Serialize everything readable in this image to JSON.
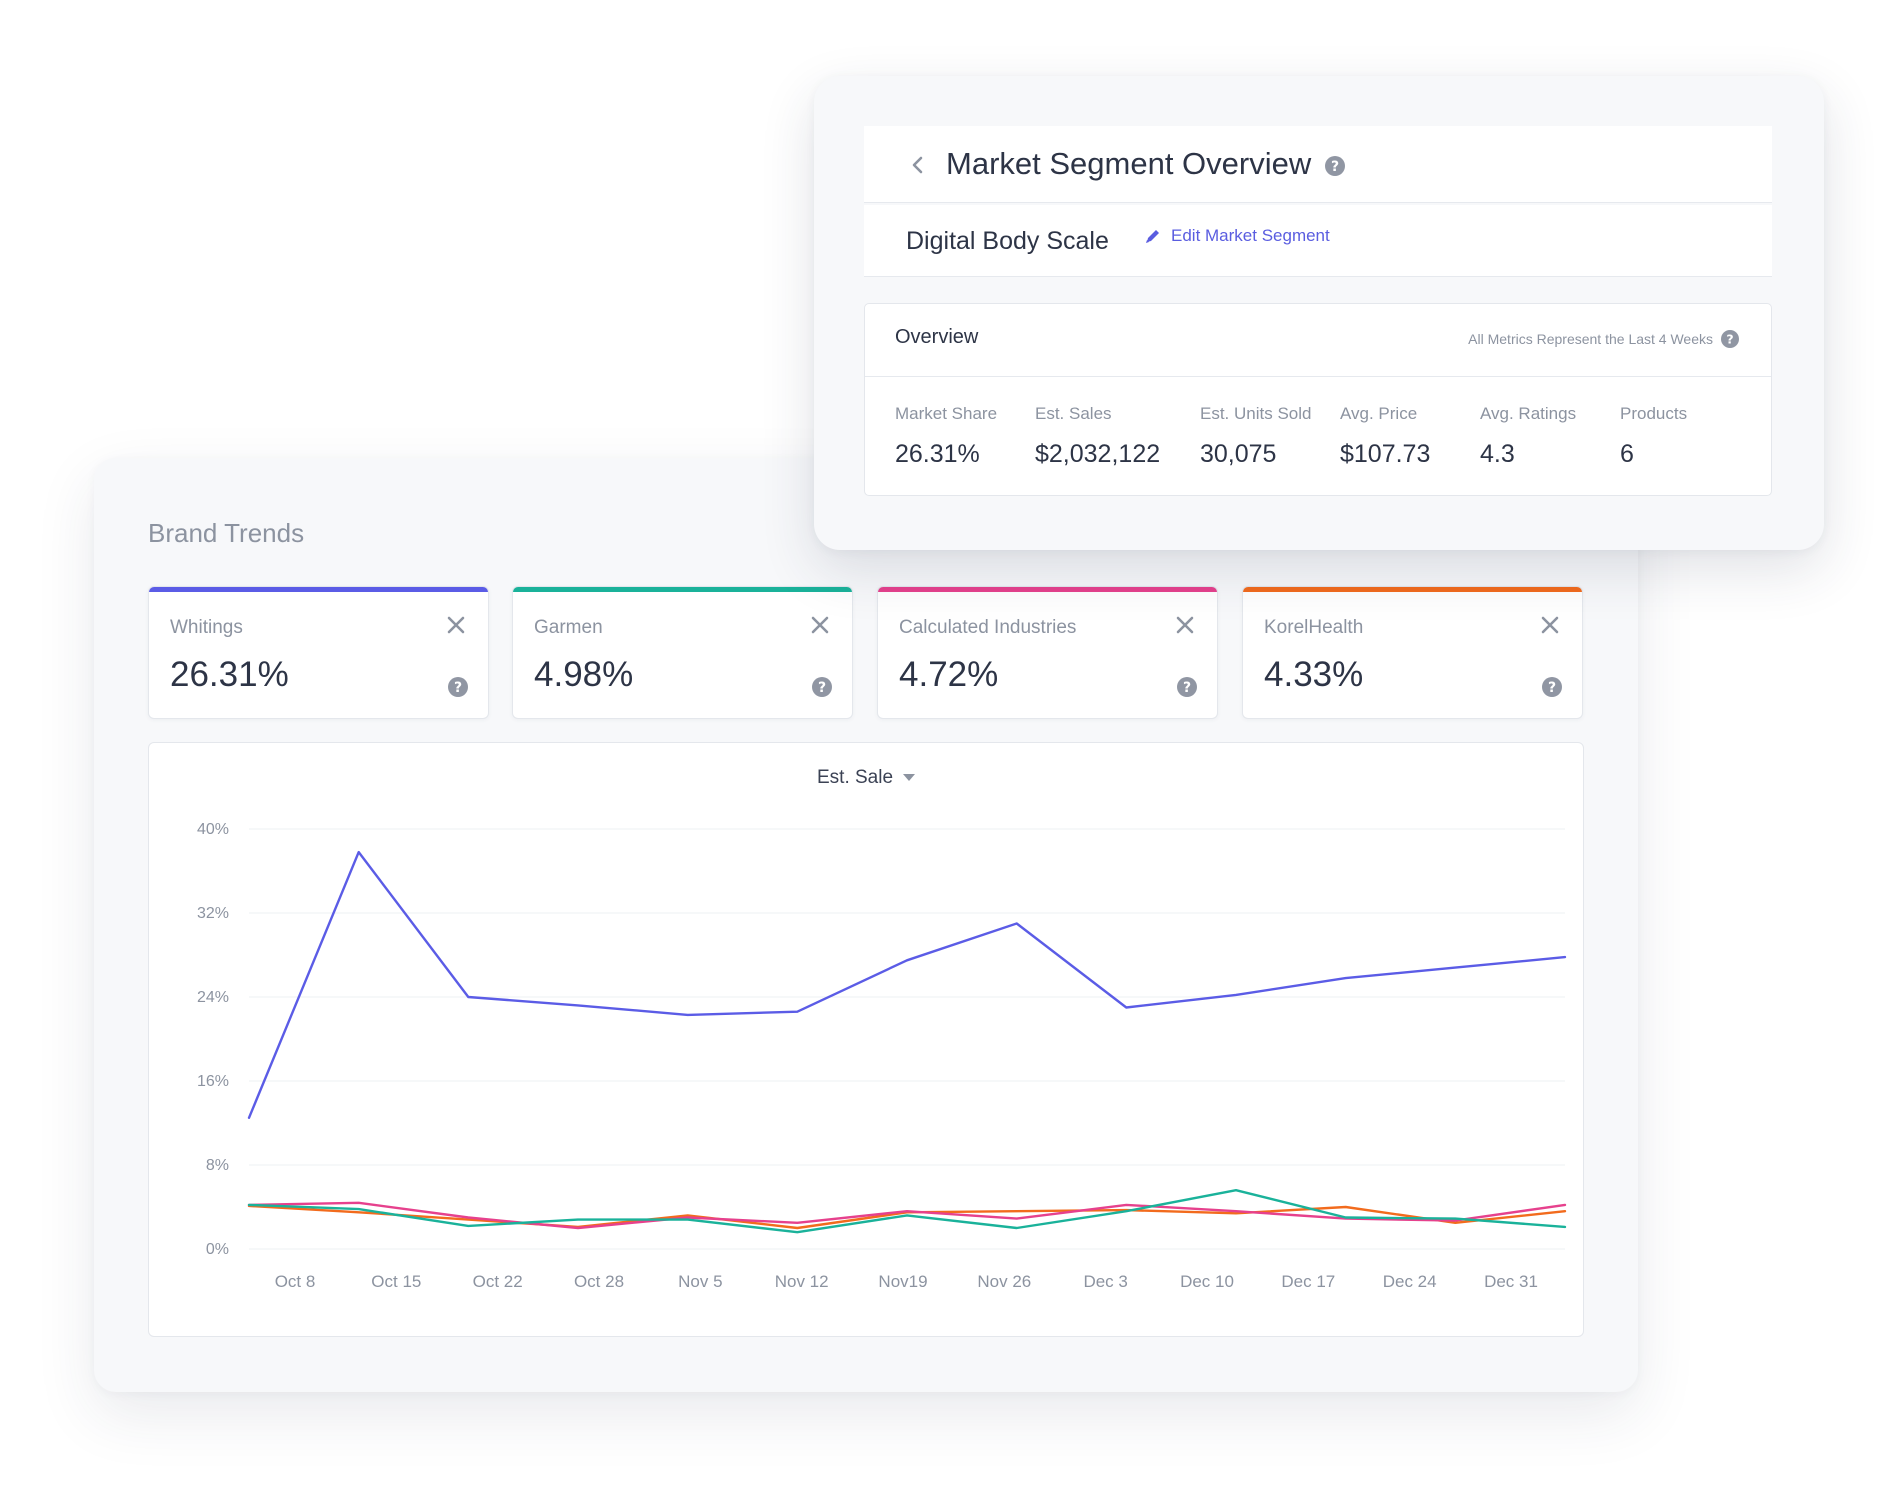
{
  "segment_overview": {
    "title": "Market Segment Overview",
    "segment_name": "Digital Body Scale",
    "edit_link": "Edit Market Segment",
    "overview_label": "Overview",
    "metrics_note": "All Metrics Represent the Last 4 Weeks",
    "metrics": [
      {
        "label": "Market Share",
        "value": "26.31%"
      },
      {
        "label": "Est. Sales",
        "value": "$2,032,122"
      },
      {
        "label": "Est. Units Sold",
        "value": "30,075"
      },
      {
        "label": "Avg. Price",
        "value": "$107.73"
      },
      {
        "label": "Avg. Ratings",
        "value": "4.3"
      },
      {
        "label": "Products",
        "value": "6"
      }
    ]
  },
  "brand_trends": {
    "title": "Brand Trends",
    "brands": [
      {
        "name": "Whitings",
        "share": "26.31%",
        "color": "#5b5ce6"
      },
      {
        "name": "Garmen",
        "share": "4.98%",
        "color": "#1ab29a"
      },
      {
        "name": "Calculated Industries",
        "share": "4.72%",
        "color": "#e6418d"
      },
      {
        "name": "KorelHealth",
        "share": "4.33%",
        "color": "#f26b1d"
      }
    ],
    "metric_selector": "Est. Sale"
  },
  "chart_data": {
    "type": "line",
    "title": "Est. Sale",
    "xlabel": "",
    "ylabel": "",
    "ylim": [
      0,
      40
    ],
    "y_ticks": [
      "40%",
      "32%",
      "24%",
      "16%",
      "8%",
      "0%"
    ],
    "y_tick_values": [
      40,
      32,
      24,
      16,
      8,
      0
    ],
    "categories": [
      "Oct 8",
      "Oct 15",
      "Oct 22",
      "Oct 28",
      "Nov 5",
      "Nov 12",
      "Nov19",
      "Nov 26",
      "Dec 3",
      "Dec 10",
      "Dec 17",
      "Dec 24",
      "Dec 31"
    ],
    "x_count": 13,
    "series": [
      {
        "name": "Whitings",
        "color": "#5b5ce6",
        "values": [
          12.5,
          37.8,
          24.0,
          23.2,
          22.3,
          22.6,
          27.5,
          31.0,
          23.0,
          24.2,
          25.8,
          26.8,
          27.8
        ]
      },
      {
        "name": "Garmen",
        "color": "#1ab29a",
        "values": [
          4.2,
          3.8,
          2.2,
          2.8,
          2.8,
          1.6,
          3.2,
          2.0,
          3.6,
          5.6,
          3.0,
          2.9,
          2.1
        ]
      },
      {
        "name": "Calculated Industries",
        "color": "#e6418d",
        "values": [
          4.2,
          4.4,
          3.0,
          2.0,
          3.0,
          2.5,
          3.6,
          2.9,
          4.2,
          3.6,
          2.9,
          2.7,
          4.2
        ]
      },
      {
        "name": "KorelHealth",
        "color": "#f26b1d",
        "values": [
          4.1,
          3.5,
          2.8,
          2.1,
          3.2,
          2.0,
          3.5,
          3.6,
          3.7,
          3.4,
          4.0,
          2.5,
          3.6
        ]
      }
    ]
  }
}
